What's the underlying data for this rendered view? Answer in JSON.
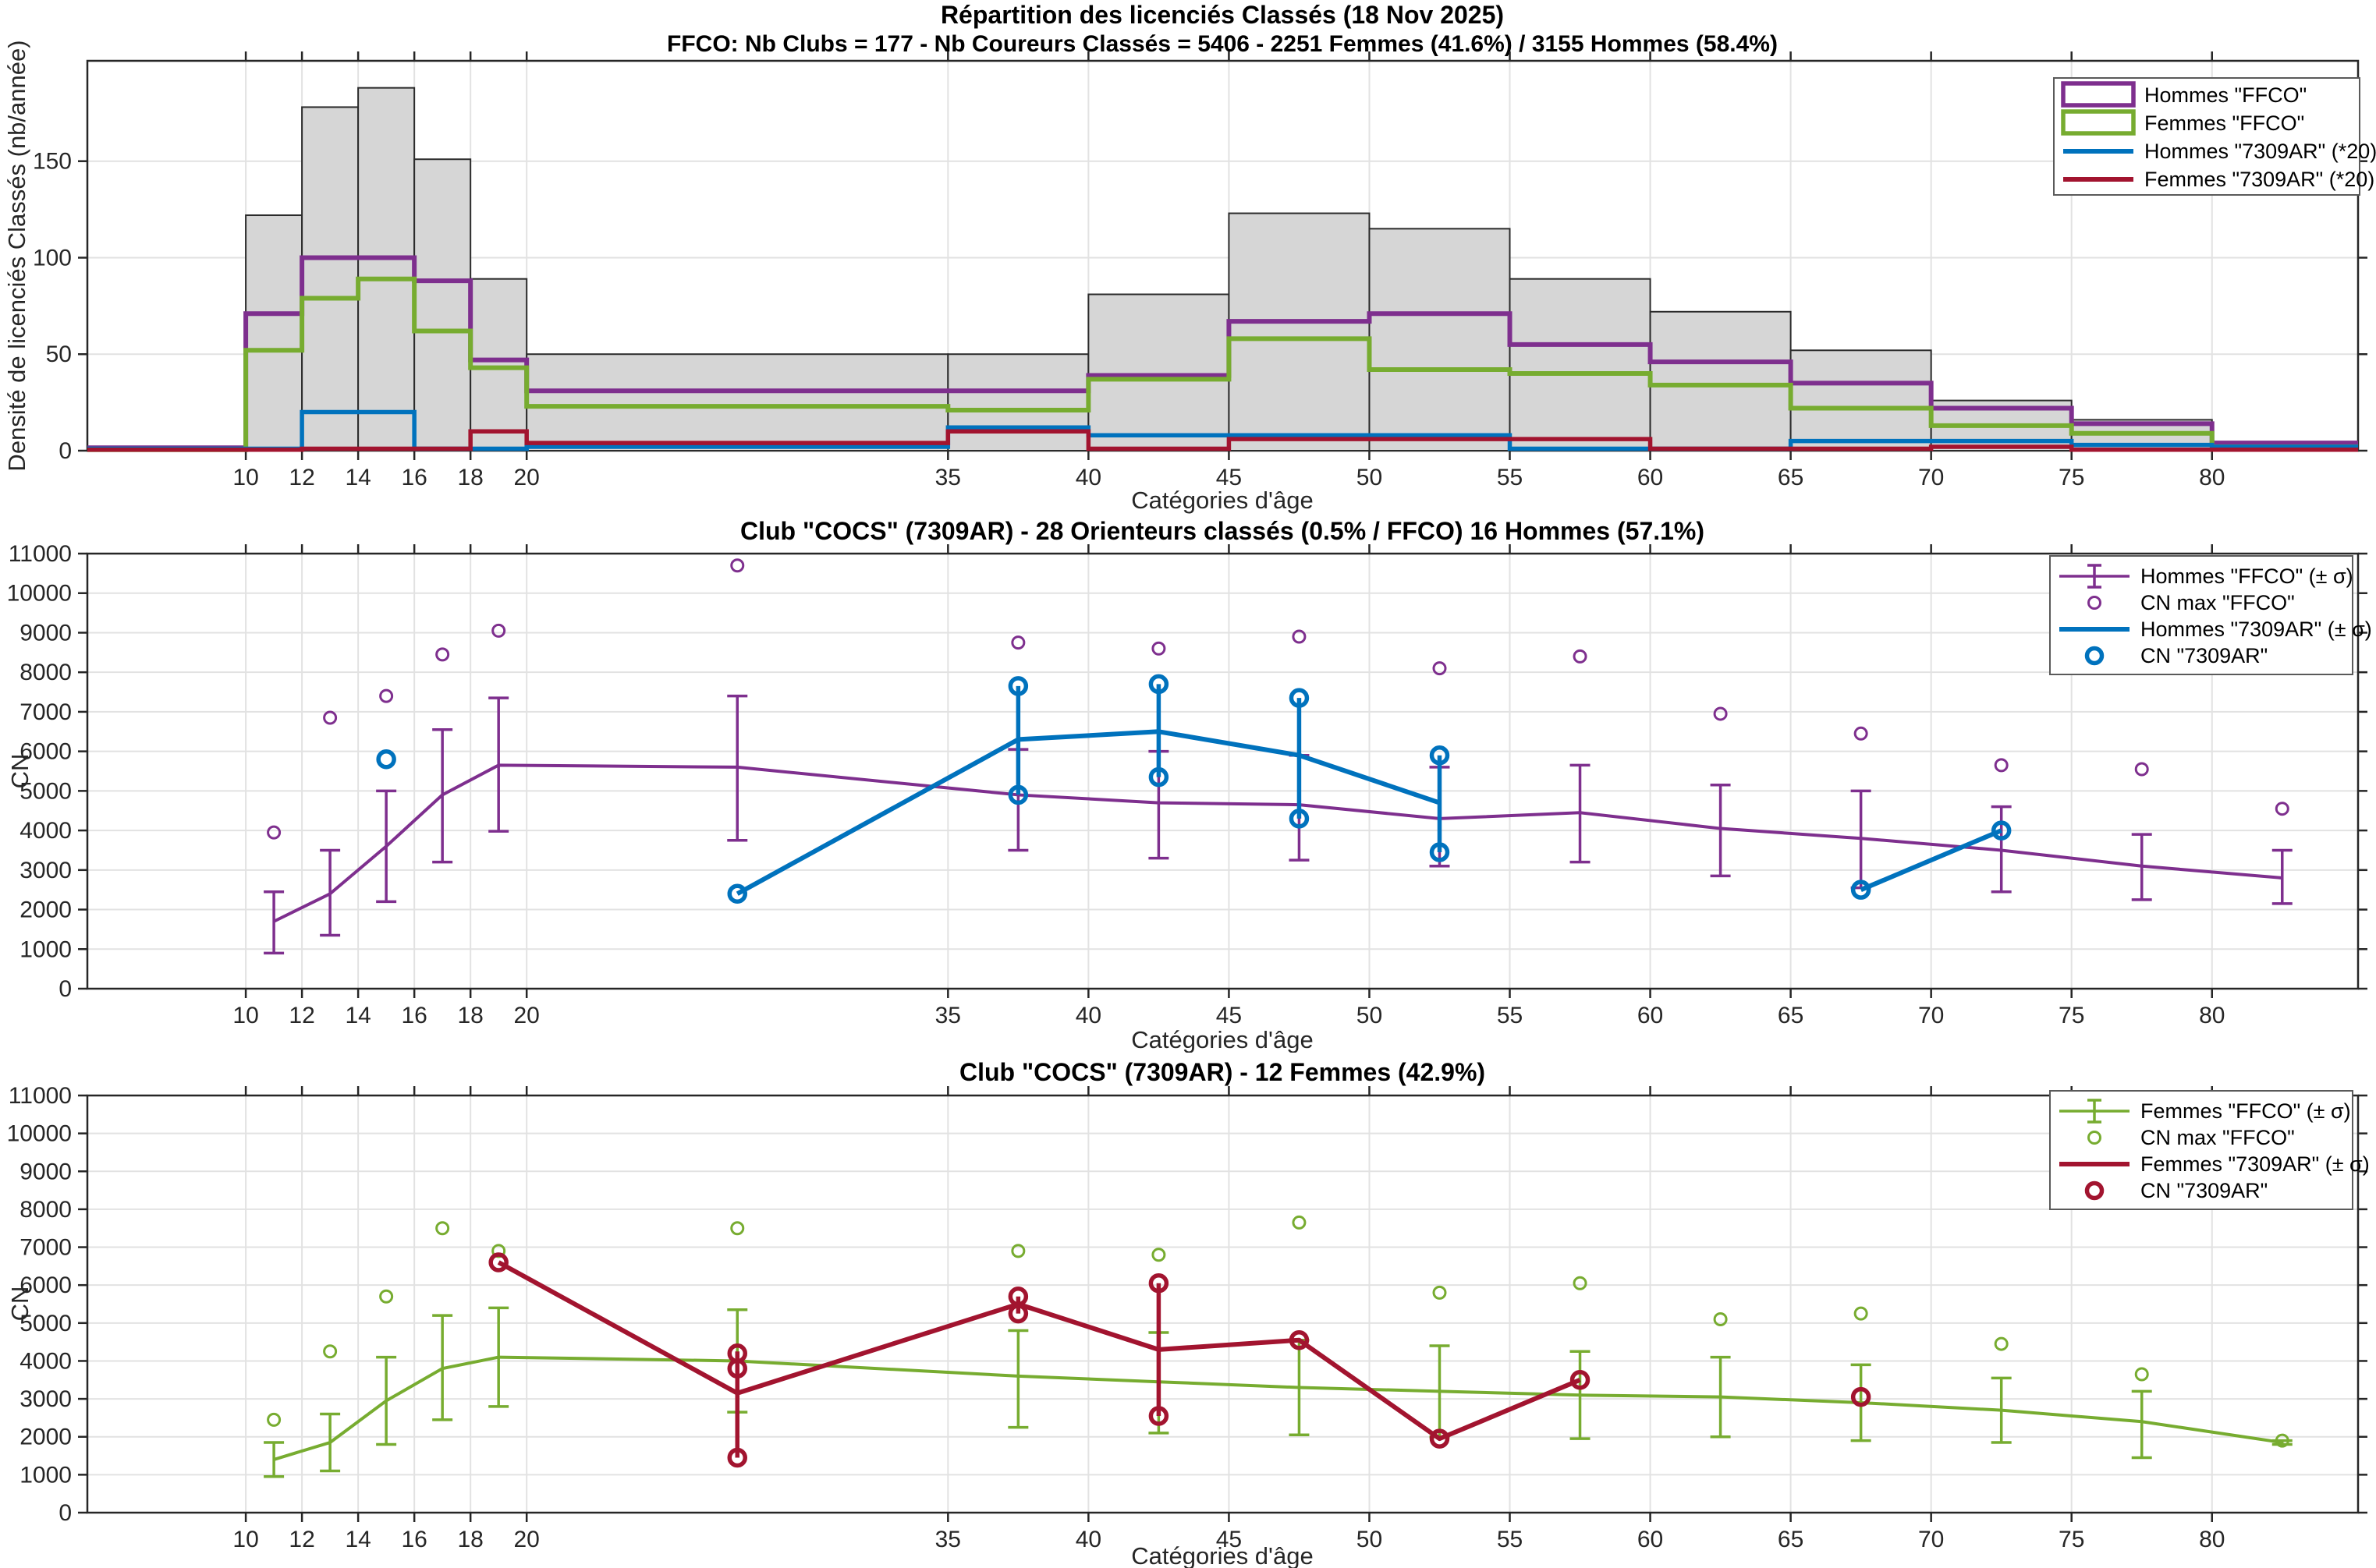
{
  "colors": {
    "hommes_ffco": "#7E2F8E",
    "femmes_ffco": "#77AC30",
    "club_hommes": "#0072BD",
    "club_femmes": "#A2142F",
    "hist_fill": "#D6D6D6",
    "hist_edge": "#2B2B2B",
    "grid": "#E2E2E2",
    "axis": "#262626",
    "legend_border": "#5A5A5A"
  },
  "chart_data": [
    {
      "type": "bar",
      "title": "Répartition des licenciés Classés (18 Nov 2025)",
      "subtitle": "FFCO: Nb Clubs = 177   -   Nb Coureurs Classés = 5406   -   2251 Femmes (41.6%) / 3155 Hommes (58.4%)",
      "xlabel": "Catégories d'âge",
      "ylabel": "Densité de licenciés Classés (nb/année)",
      "xlim": [
        4.36,
        85.2
      ],
      "ylim": [
        0,
        202
      ],
      "yticks": [
        0,
        50,
        100,
        150
      ],
      "xticks": [
        10,
        12,
        14,
        16,
        18,
        20,
        35,
        40,
        45,
        50,
        55,
        60,
        65,
        70,
        75,
        80
      ],
      "grid": true,
      "legend_position": "upper right",
      "bin_edges": [
        4.36,
        10,
        12,
        14,
        16,
        18,
        20,
        35,
        40,
        45,
        50,
        55,
        60,
        65,
        70,
        75,
        80,
        85.2
      ],
      "series": [
        {
          "name": "Total FFCO",
          "style": "bar",
          "color_key": "hist_fill",
          "values": [
            0,
            122,
            178,
            188,
            151,
            89,
            50,
            50,
            81,
            123,
            115,
            89,
            72,
            52,
            26,
            16,
            3
          ]
        },
        {
          "name": "Hommes \"FFCO\"",
          "style": "step",
          "color_key": "hommes_ffco",
          "values": [
            1.5,
            71,
            100,
            100,
            88,
            47,
            31,
            31,
            39,
            67,
            71,
            55,
            46,
            35,
            22,
            14,
            4
          ]
        },
        {
          "name": "Femmes \"FFCO\"",
          "style": "step",
          "color_key": "femmes_ffco",
          "values": [
            0.5,
            52,
            79,
            89,
            62,
            43,
            23,
            21,
            37,
            58,
            42,
            40,
            34,
            22,
            13,
            9,
            2
          ]
        },
        {
          "name": "Hommes \"7309AR\" (*20)",
          "style": "step",
          "color_key": "club_hommes",
          "values": [
            1,
            1,
            20,
            20,
            1,
            1,
            2,
            12,
            8,
            8,
            8,
            1,
            1,
            5,
            5,
            3,
            2
          ]
        },
        {
          "name": "Femmes \"7309AR\" (*20)",
          "style": "step",
          "color_key": "club_femmes",
          "values": [
            0.5,
            0.5,
            1,
            1,
            1,
            10,
            4,
            10,
            1,
            6,
            6,
            6,
            1,
            1,
            2,
            0.5,
            0.5
          ]
        }
      ],
      "legend": [
        {
          "symbol": "rect",
          "color_key": "hommes_ffco",
          "label": "Hommes \"FFCO\""
        },
        {
          "symbol": "rect",
          "color_key": "femmes_ffco",
          "label": "Femmes \"FFCO\""
        },
        {
          "symbol": "line",
          "color_key": "club_hommes",
          "label": "Hommes \"7309AR\" (*20)"
        },
        {
          "symbol": "line",
          "color_key": "club_femmes",
          "label": "Femmes \"7309AR\" (*20)"
        }
      ]
    },
    {
      "type": "line",
      "title": "Club \"COCS\" (7309AR)  -  28 Orienteurs classés (0.5% / FFCO)  16 Hommes (57.1%)",
      "xlabel": "Catégories d'âge",
      "ylabel": "CN",
      "xlim": [
        4.36,
        85.2
      ],
      "ylim": [
        0,
        11000
      ],
      "yticks": [
        0,
        1000,
        2000,
        3000,
        4000,
        5000,
        6000,
        7000,
        8000,
        9000,
        10000,
        11000
      ],
      "xticks": [
        10,
        12,
        14,
        16,
        18,
        20,
        35,
        40,
        45,
        50,
        55,
        60,
        65,
        70,
        75,
        80
      ],
      "grid": true,
      "legend_position": "upper right",
      "ffco": {
        "color_key": "hommes_ffco",
        "x": [
          11,
          13,
          15,
          17,
          19,
          27.5,
          37.5,
          42.5,
          47.5,
          52.5,
          57.5,
          62.5,
          67.5,
          72.5,
          77.5,
          82.5
        ],
        "mean": [
          1700,
          2400,
          3600,
          4900,
          5650,
          5600,
          4900,
          4700,
          4650,
          4300,
          4450,
          4050,
          3800,
          3500,
          3100,
          2800
        ],
        "lo": [
          900,
          1350,
          2200,
          3200,
          3980,
          3750,
          3500,
          3300,
          3250,
          3100,
          3200,
          2850,
          2550,
          2450,
          2250,
          2150
        ],
        "hi": [
          2450,
          3500,
          5000,
          6550,
          7350,
          7400,
          6050,
          6000,
          5900,
          5600,
          5650,
          5150,
          5000,
          4600,
          3900,
          3500
        ],
        "cnmax": [
          3950,
          6850,
          7400,
          8450,
          9050,
          10700,
          8750,
          8600,
          8900,
          8100,
          8400,
          6950,
          6450,
          5650,
          5550,
          4550
        ]
      },
      "club": {
        "color_key": "club_hommes",
        "lines": [
          [
            [
              27.5,
              2400
            ],
            [
              37.5,
              6300
            ],
            [
              42.5,
              6500
            ],
            [
              47.5,
              5900
            ],
            [
              52.5,
              4700
            ]
          ],
          [
            [
              67.5,
              2500
            ],
            [
              72.5,
              4000
            ]
          ]
        ],
        "bars": [
          [
            37.5,
            4900,
            7650
          ],
          [
            42.5,
            5350,
            7700
          ],
          [
            47.5,
            4300,
            7350
          ],
          [
            52.5,
            3450,
            5900
          ]
        ],
        "points": [
          [
            15,
            5800
          ],
          [
            27.5,
            2400
          ],
          [
            37.5,
            7650
          ],
          [
            37.5,
            4900
          ],
          [
            42.5,
            7700
          ],
          [
            42.5,
            5350
          ],
          [
            47.5,
            7350
          ],
          [
            47.5,
            4300
          ],
          [
            52.5,
            5900
          ],
          [
            52.5,
            3450
          ],
          [
            67.5,
            2500
          ],
          [
            72.5,
            4000
          ]
        ]
      },
      "legend": [
        {
          "symbol": "errorbar",
          "color_key": "hommes_ffco",
          "label": "Hommes \"FFCO\" (± σ)"
        },
        {
          "symbol": "circle",
          "color_key": "hommes_ffco",
          "label": "CN max \"FFCO\""
        },
        {
          "symbol": "line",
          "color_key": "club_hommes",
          "label": "Hommes \"7309AR\" (± σ)"
        },
        {
          "symbol": "circle-bold",
          "color_key": "club_hommes",
          "label": "CN \"7309AR\""
        }
      ]
    },
    {
      "type": "line",
      "title": "Club \"COCS\" (7309AR)  -  12 Femmes (42.9%)",
      "xlabel": "Catégories d'âge",
      "ylabel": "CN",
      "xlim": [
        4.36,
        85.2
      ],
      "ylim": [
        0,
        11000
      ],
      "yticks": [
        0,
        1000,
        2000,
        3000,
        4000,
        5000,
        6000,
        7000,
        8000,
        9000,
        10000,
        11000
      ],
      "xticks": [
        10,
        12,
        14,
        16,
        18,
        20,
        35,
        40,
        45,
        50,
        55,
        60,
        65,
        70,
        75,
        80
      ],
      "grid": true,
      "legend_position": "upper right",
      "ffco": {
        "color_key": "femmes_ffco",
        "x": [
          11,
          13,
          15,
          17,
          19,
          27.5,
          37.5,
          42.5,
          47.5,
          52.5,
          57.5,
          62.5,
          67.5,
          72.5,
          77.5,
          82.5
        ],
        "mean": [
          1400,
          1850,
          2950,
          3800,
          4100,
          4000,
          3600,
          3450,
          3300,
          3200,
          3100,
          3050,
          2900,
          2700,
          2400,
          1850
        ],
        "lo": [
          950,
          1100,
          1800,
          2450,
          2800,
          2650,
          2250,
          2100,
          2050,
          2000,
          1950,
          2000,
          1900,
          1850,
          1450,
          1800
        ],
        "hi": [
          1850,
          2600,
          4100,
          5200,
          5400,
          5350,
          4800,
          4750,
          4550,
          4400,
          4250,
          4100,
          3900,
          3550,
          3200,
          1900
        ],
        "cnmax": [
          2450,
          4250,
          5700,
          7500,
          6900,
          7500,
          6900,
          6800,
          7650,
          5800,
          6050,
          5100,
          5250,
          4450,
          3650,
          1900
        ]
      },
      "club": {
        "color_key": "club_femmes",
        "lines": [
          [
            [
              19,
              6600
            ],
            [
              27.5,
              3150
            ],
            [
              37.5,
              5500
            ],
            [
              42.5,
              4300
            ],
            [
              47.5,
              4550
            ],
            [
              52.5,
              1950
            ],
            [
              57.5,
              3500
            ]
          ]
        ],
        "bars": [
          [
            27.5,
            1450,
            4250
          ],
          [
            37.5,
            5250,
            5700
          ],
          [
            42.5,
            2550,
            6050
          ]
        ],
        "points": [
          [
            19,
            6600
          ],
          [
            27.5,
            4200
          ],
          [
            27.5,
            3800
          ],
          [
            27.5,
            1450
          ],
          [
            37.5,
            5700
          ],
          [
            37.5,
            5250
          ],
          [
            42.5,
            6050
          ],
          [
            42.5,
            2550
          ],
          [
            47.5,
            4550
          ],
          [
            52.5,
            1950
          ],
          [
            57.5,
            3500
          ],
          [
            67.5,
            3050
          ]
        ]
      },
      "legend": [
        {
          "symbol": "errorbar",
          "color_key": "femmes_ffco",
          "label": "Femmes \"FFCO\" (± σ)"
        },
        {
          "symbol": "circle",
          "color_key": "femmes_ffco",
          "label": "CN max \"FFCO\""
        },
        {
          "symbol": "line",
          "color_key": "club_femmes",
          "label": "Femmes \"7309AR\" (± σ)"
        },
        {
          "symbol": "circle-bold",
          "color_key": "club_femmes",
          "label": "CN \"7309AR\""
        }
      ]
    }
  ]
}
